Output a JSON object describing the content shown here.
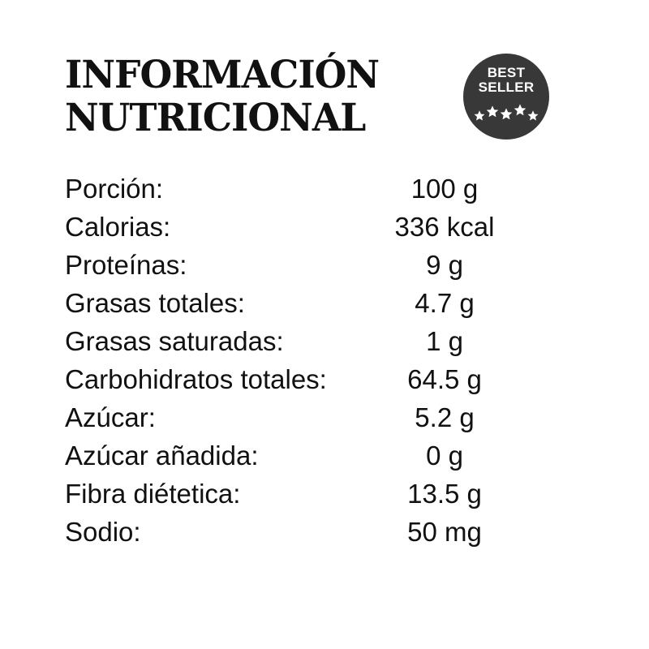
{
  "title": {
    "line1": "INFORMACIÓN",
    "line2": "NUTRICIONAL"
  },
  "badge": {
    "line1": "BEST",
    "line2": "SELLER",
    "icon": "stars-icon",
    "color": "#383838"
  },
  "nutrition": [
    {
      "label": "Porción:",
      "value": "100 g"
    },
    {
      "label": "Calorias:",
      "value": "336 kcal"
    },
    {
      "label": "Proteínas:",
      "value": "9 g"
    },
    {
      "label": "Grasas totales:",
      "value": "4.7 g"
    },
    {
      "label": "Grasas saturadas:",
      "value": "1 g"
    },
    {
      "label": "Carbohidratos totales:",
      "value": "64.5 g"
    },
    {
      "label": "Azúcar:",
      "value": "5.2 g"
    },
    {
      "label": "Azúcar añadida:",
      "value": "0 g"
    },
    {
      "label": "Fibra diétetica:",
      "value": "13.5 g"
    },
    {
      "label": "Sodio:",
      "value": "50 mg"
    }
  ]
}
